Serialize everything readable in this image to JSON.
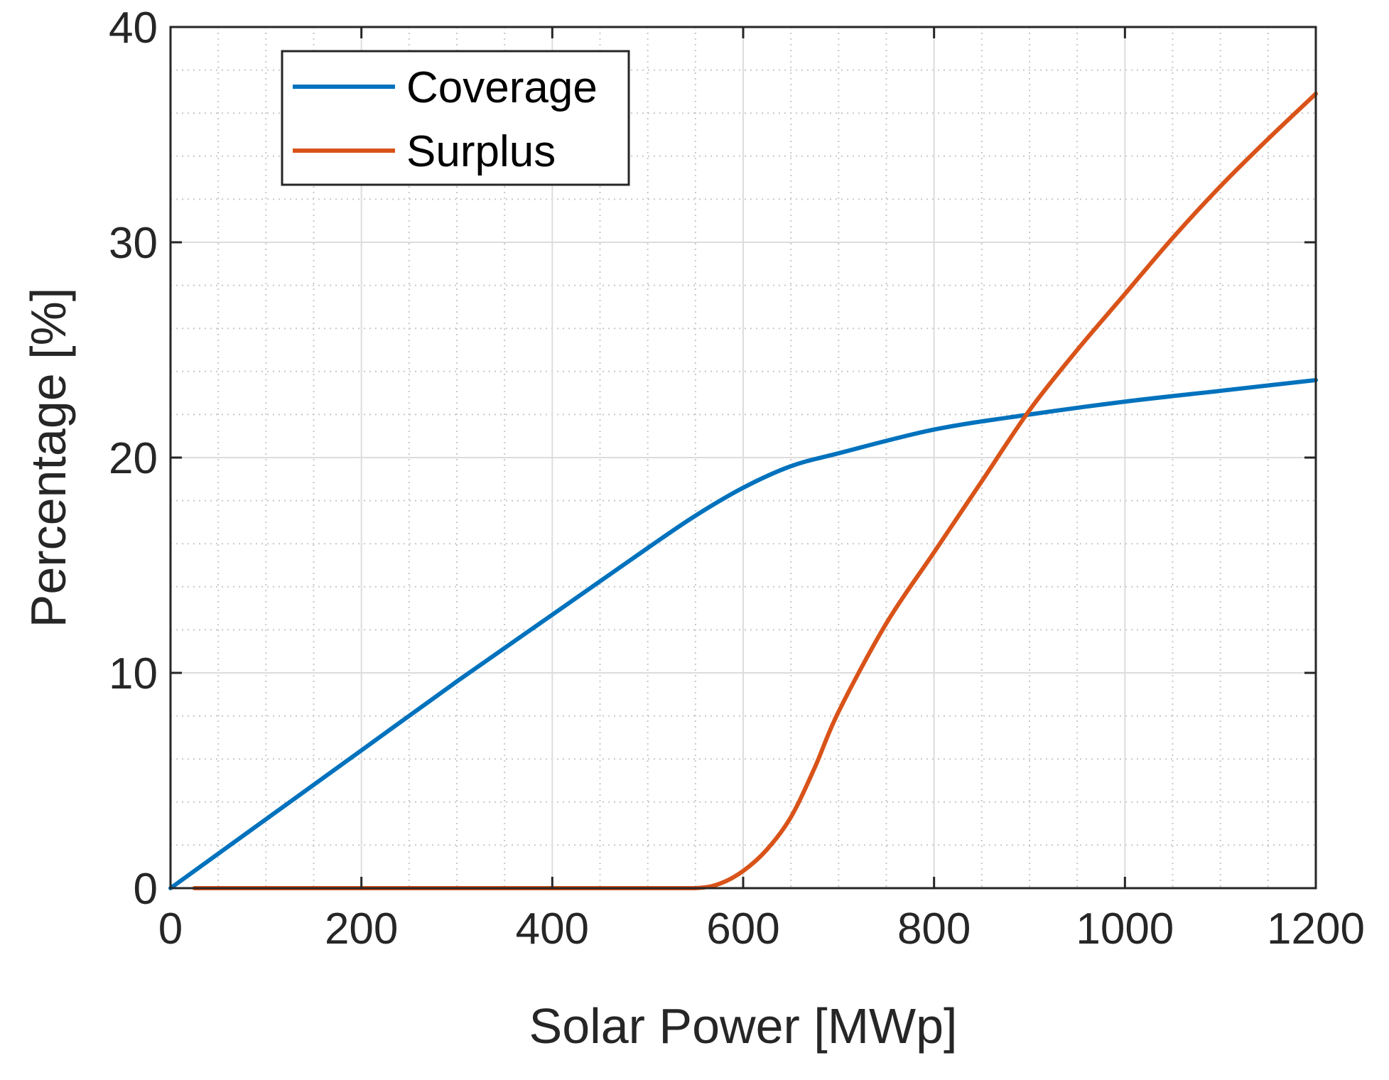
{
  "chart_data": {
    "type": "line",
    "title": "",
    "xlabel": "Solar Power [MWp]",
    "ylabel": "Percentage [%]",
    "xlim": [
      0,
      1200
    ],
    "ylim": [
      0,
      40
    ],
    "xticks": [
      0,
      200,
      400,
      600,
      800,
      1000,
      1200
    ],
    "yticks": [
      0,
      10,
      20,
      30,
      40
    ],
    "xtick_labels": [
      "0",
      "200",
      "400",
      "600",
      "800",
      "1000",
      "1200"
    ],
    "ytick_labels": [
      "0",
      "10",
      "20",
      "30",
      "40"
    ],
    "grid": "major and minor",
    "legend_position": "top-left",
    "series": [
      {
        "name": "Coverage",
        "color": "#0072BD",
        "x": [
          0,
          100,
          200,
          300,
          400,
          500,
          550,
          600,
          650,
          700,
          800,
          900,
          1000,
          1100,
          1200
        ],
        "y": [
          0,
          3.2,
          6.4,
          9.6,
          12.7,
          15.8,
          17.3,
          18.6,
          19.6,
          20.2,
          21.3,
          22.0,
          22.6,
          23.1,
          23.6
        ]
      },
      {
        "name": "Surplus",
        "color": "#D95319",
        "x": [
          25,
          100,
          200,
          300,
          400,
          500,
          550,
          575,
          600,
          625,
          650,
          675,
          700,
          750,
          800,
          850,
          900,
          950,
          1000,
          1050,
          1100,
          1150,
          1200
        ],
        "y": [
          0,
          0,
          0,
          0,
          0,
          0,
          0,
          0.2,
          0.8,
          1.8,
          3.3,
          5.6,
          8.2,
          12.3,
          15.6,
          18.9,
          22.2,
          25.0,
          27.6,
          30.2,
          32.6,
          34.8,
          36.9
        ]
      }
    ]
  }
}
